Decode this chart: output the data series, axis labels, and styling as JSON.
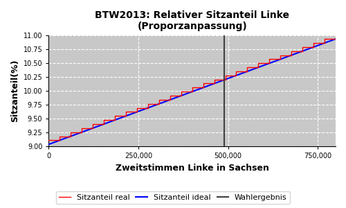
{
  "title": "BTW2013: Relativer Sitzanteil Linke\n(Proporzanpassung)",
  "xlabel": "Zweitstimmen Linke in Sachsen",
  "ylabel": "Sitzanteil(%)",
  "xlim": [
    0,
    800000
  ],
  "ylim": [
    9.0,
    11.0
  ],
  "xticks": [
    0,
    250000,
    500000,
    750000
  ],
  "yticks": [
    9.0,
    9.25,
    9.5,
    9.75,
    10.0,
    10.25,
    10.5,
    10.75,
    11.0
  ],
  "wahlergebnis_x": 490000,
  "background_color": "#c8c8c8",
  "grid_color": "white",
  "line_real_color": "red",
  "line_ideal_color": "blue",
  "line_wahl_color": "#404040",
  "legend_labels": [
    "Sitzanteil real",
    "Sitzanteil ideal",
    "Wahlergebnis"
  ],
  "n_steps": 26,
  "x_start": 0,
  "x_end": 800000,
  "y_start": 9.04,
  "y_end": 10.93,
  "step_amplitude": 0.13
}
